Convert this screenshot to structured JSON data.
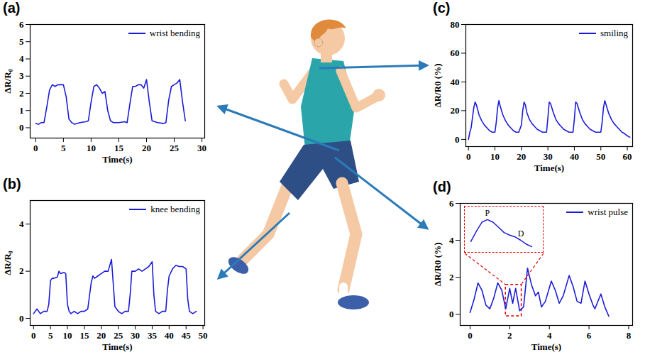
{
  "chart_data": [
    {
      "type": "line",
      "panel_label": "(a)",
      "xlabel": "Time(s)",
      "ylabel": "ΔR/R₀",
      "xlim": [
        -1,
        30.5
      ],
      "xticks": [
        0,
        5,
        10,
        15,
        20,
        25,
        30
      ],
      "ylim": [
        -0.6,
        6
      ],
      "yticks": [
        0,
        1,
        2,
        3,
        4,
        5,
        6
      ],
      "grid": false,
      "legend": "top-right",
      "x": [
        0,
        0.5,
        1,
        1.5,
        2,
        2.5,
        3,
        3.5,
        4,
        4.5,
        5,
        5.5,
        6,
        6.5,
        7,
        8,
        9,
        9.5,
        10,
        10.5,
        11,
        11.5,
        12,
        12.5,
        13,
        13.5,
        14,
        15,
        16,
        16.5,
        17,
        17.5,
        18,
        18.5,
        19,
        19.5,
        20,
        20.5,
        21,
        22,
        23,
        23.5,
        24,
        24.5,
        25,
        25.5,
        26,
        26.5,
        27
      ],
      "series": [
        {
          "name": "wrist bending",
          "color": "#1c1cd8",
          "values": [
            0.25,
            0.2,
            0.3,
            0.3,
            1.2,
            2.2,
            2.5,
            2.4,
            2.5,
            2.5,
            2.5,
            1.8,
            0.5,
            0.3,
            0.2,
            0.3,
            0.35,
            0.4,
            1.5,
            2.4,
            2.5,
            2.3,
            2.0,
            2.1,
            1.0,
            0.4,
            0.3,
            0.3,
            0.35,
            0.3,
            1.4,
            2.4,
            2.4,
            2.5,
            2.5,
            2.3,
            2.8,
            1.5,
            0.4,
            0.3,
            0.25,
            0.3,
            1.6,
            2.4,
            2.5,
            2.6,
            2.8,
            1.5,
            0.4
          ]
        }
      ]
    },
    {
      "type": "line",
      "panel_label": "(b)",
      "xlabel": "Time(s)",
      "ylabel": "ΔR/R₀",
      "xlim": [
        -1,
        50.5
      ],
      "xticks": [
        0,
        5,
        10,
        15,
        20,
        25,
        30,
        35,
        40,
        45,
        50
      ],
      "ylim": [
        -0.3,
        5
      ],
      "yticks": [
        0,
        2,
        4
      ],
      "grid": false,
      "legend": "top-right",
      "x": [
        0,
        1,
        2,
        3,
        4,
        4.5,
        5,
        5.5,
        6,
        7,
        7.5,
        8,
        9,
        9.5,
        10,
        10.5,
        11,
        12,
        13,
        14,
        15,
        16,
        17,
        17.5,
        18,
        19,
        20,
        21,
        22,
        23,
        23.5,
        24,
        25,
        26,
        27,
        28,
        28.5,
        29,
        30,
        31,
        32,
        33,
        34,
        35,
        35.5,
        36,
        37,
        38,
        39,
        39.5,
        40,
        41,
        42,
        43,
        44,
        45,
        45.5,
        46,
        47,
        48
      ],
      "series": [
        {
          "name": "knee bending",
          "color": "#1c1cd8",
          "values": [
            0.2,
            0.4,
            0.2,
            0.3,
            0.3,
            0.6,
            1.6,
            1.7,
            1.7,
            1.75,
            2.0,
            1.9,
            1.95,
            1.9,
            0.6,
            0.3,
            0.2,
            0.3,
            0.2,
            0.3,
            0.3,
            0.4,
            1.5,
            1.8,
            1.7,
            1.8,
            1.9,
            2.0,
            2.0,
            2.5,
            1.5,
            0.5,
            0.3,
            0.2,
            0.3,
            0.3,
            1.0,
            2.0,
            2.0,
            2.1,
            2.0,
            2.1,
            2.2,
            2.4,
            1.0,
            0.3,
            0.2,
            0.3,
            0.3,
            1.2,
            1.8,
            2.1,
            2.25,
            2.2,
            2.2,
            2.1,
            0.8,
            0.3,
            0.2,
            0.3
          ]
        }
      ]
    },
    {
      "type": "line",
      "panel_label": "(c)",
      "xlabel": "Time(s)",
      "ylabel": "ΔR/R0 (%)",
      "xlim": [
        -1,
        62
      ],
      "xticks": [
        0,
        10,
        20,
        30,
        40,
        50,
        60
      ],
      "ylim": [
        -5,
        80
      ],
      "yticks": [
        0,
        20,
        40,
        60,
        80
      ],
      "grid": false,
      "legend": "top-right",
      "x": [
        0,
        0.5,
        1,
        1.5,
        2,
        2.5,
        3,
        4,
        5,
        6,
        7,
        8,
        9,
        10,
        10.5,
        11,
        11.5,
        12,
        13,
        14,
        15,
        16,
        17,
        18,
        19,
        20,
        20.5,
        21,
        21.5,
        22,
        23,
        24,
        25,
        26,
        27,
        28,
        29.5,
        30,
        30.5,
        31,
        32,
        33,
        34,
        35,
        36,
        37,
        38,
        39.5,
        40,
        40.5,
        41,
        42,
        43,
        44,
        45,
        46,
        47,
        48,
        50,
        50.5,
        51,
        51.5,
        52,
        53,
        54,
        55,
        56,
        57,
        58,
        59,
        60,
        61
      ],
      "series": [
        {
          "name": "smiling",
          "color": "#1c1cd8",
          "values": [
            0,
            5,
            8,
            15,
            22,
            26,
            24,
            17,
            13,
            10,
            8,
            6,
            5,
            5,
            12,
            22,
            27,
            23,
            17,
            13,
            10,
            8,
            6,
            5,
            5,
            10,
            20,
            26,
            24,
            19,
            14,
            11,
            9,
            7,
            6,
            5,
            5,
            15,
            26,
            25,
            19,
            14,
            11,
            9,
            7,
            6,
            5,
            5,
            14,
            26,
            25,
            19,
            14,
            11,
            9,
            7,
            6,
            5,
            5,
            12,
            22,
            27,
            24,
            18,
            14,
            11,
            9,
            7,
            5,
            4,
            2.5,
            1.5
          ]
        }
      ]
    },
    {
      "type": "line",
      "panel_label": "(d)",
      "xlabel": "Time(s)",
      "ylabel": "ΔR/R0 (%)",
      "xlim": [
        -0.5,
        8.2
      ],
      "xticks": [
        0,
        2,
        4,
        6,
        8
      ],
      "ylim": [
        -0.6,
        6
      ],
      "yticks": [
        0,
        2,
        4,
        6
      ],
      "grid": false,
      "legend": "top-right",
      "x": [
        0,
        0.2,
        0.4,
        0.6,
        0.8,
        1,
        1.2,
        1.4,
        1.6,
        1.8,
        2.0,
        2.15,
        2.3,
        2.5,
        2.7,
        2.9,
        3.1,
        3.3,
        3.45,
        3.6,
        3.8,
        4.1,
        4.3,
        4.5,
        4.7,
        5.0,
        5.2,
        5.4,
        5.6,
        5.8,
        6.0,
        6.2,
        6.3,
        6.6,
        6.8,
        7.0
      ],
      "series": [
        {
          "name": "wrist pulse",
          "color": "#1c1cd8",
          "values": [
            0.1,
            0.8,
            1.7,
            1.3,
            0.5,
            0.3,
            0.9,
            1.7,
            1.3,
            0.3,
            1.4,
            0.6,
            1.4,
            0.2,
            0.4,
            2.5,
            1.6,
            1.0,
            1.2,
            0.4,
            0.7,
            1.8,
            1.3,
            0.6,
            1.0,
            2.1,
            1.5,
            0.7,
            0.6,
            1.8,
            1.1,
            0.5,
            0.3,
            1.1,
            0.4,
            -0.1
          ]
        }
      ],
      "highlight": {
        "x": [
          1.8,
          2.6
        ],
        "y": [
          -0.1,
          1.6
        ]
      },
      "inset": {
        "x": [
          1.95,
          2.0,
          2.05,
          2.1,
          2.15,
          2.2,
          2.25,
          2.3,
          2.35,
          2.4,
          2.45,
          2.5
        ],
        "values": [
          0.6,
          1.0,
          1.35,
          1.45,
          1.35,
          1.15,
          0.95,
          0.85,
          0.78,
          0.65,
          0.5,
          0.4
        ],
        "annotations": [
          {
            "text": "P",
            "x": 2.1,
            "y": 1.45
          },
          {
            "text": "D",
            "x": 2.35,
            "y": 0.78
          }
        ]
      }
    }
  ]
}
